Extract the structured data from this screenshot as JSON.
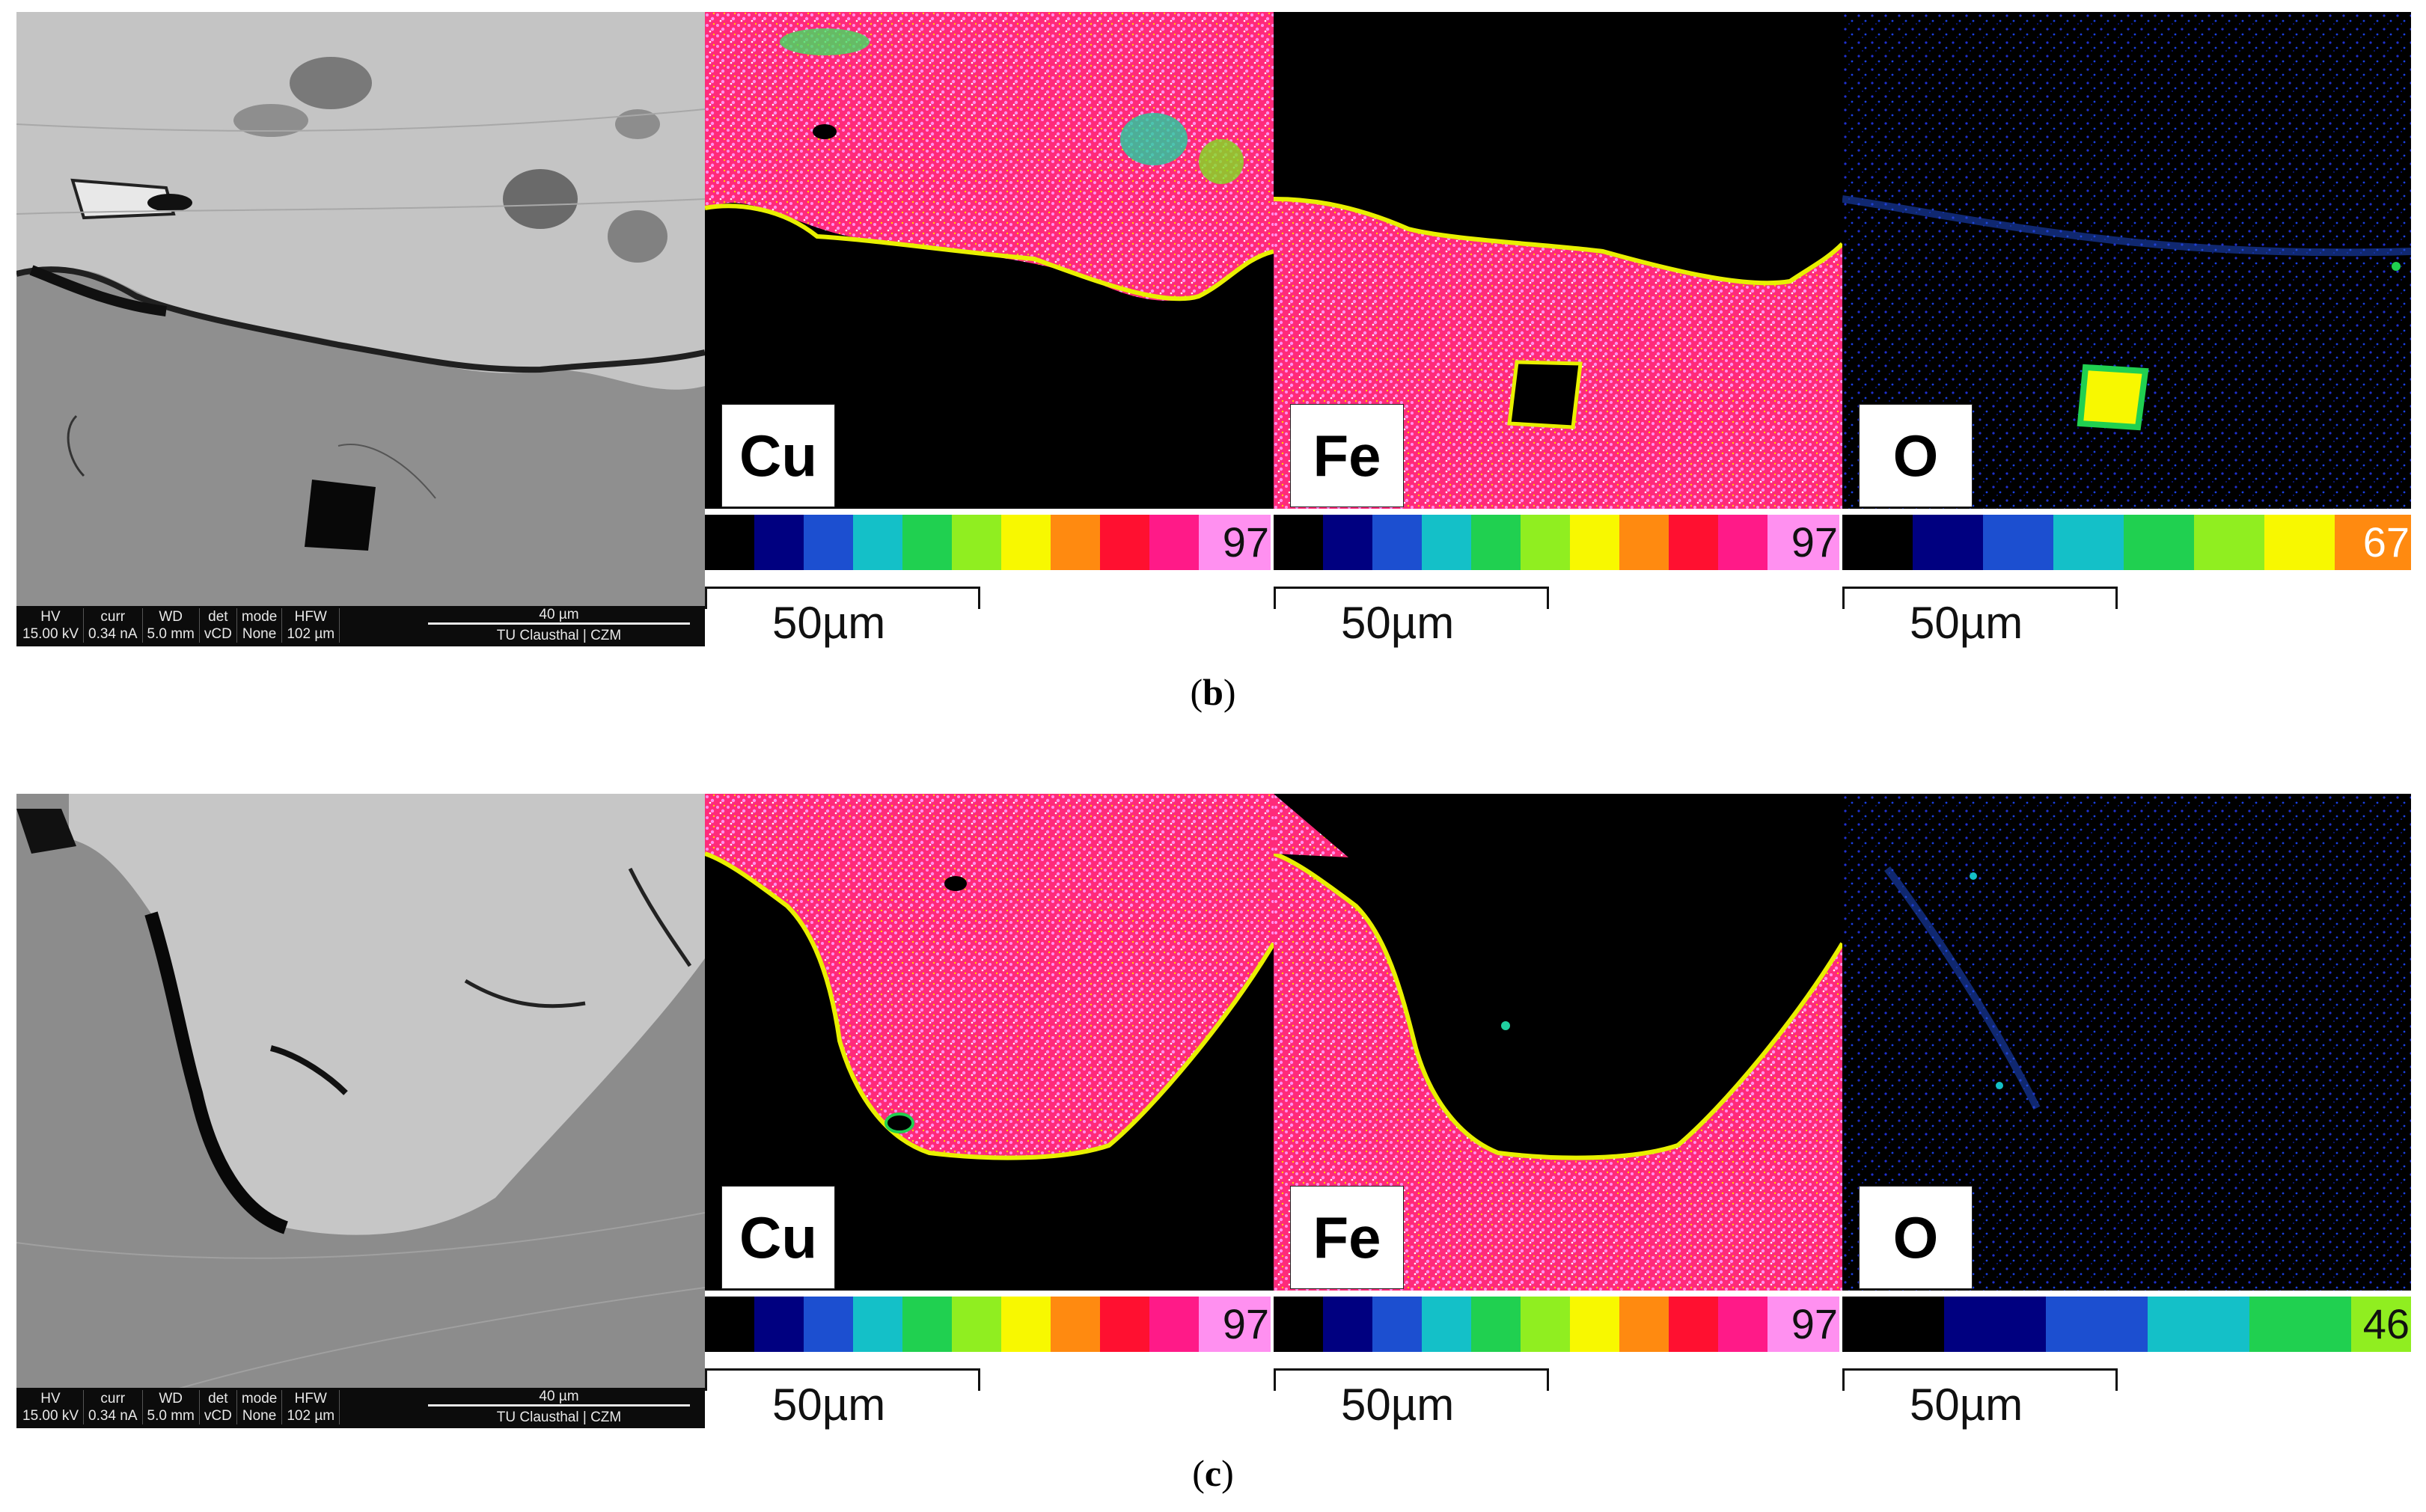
{
  "panels": [
    {
      "id": "b",
      "caption_open": "(",
      "caption_letter": "b",
      "caption_close": ")",
      "sem_databar": {
        "headers": [
          "HV",
          "curr",
          "WD",
          "det",
          "mode",
          "HFW"
        ],
        "values": [
          "15.00 kV",
          "0.34 nA",
          "5.0 mm",
          "vCD",
          "None",
          "102 µm"
        ],
        "scale_label": "40 µm",
        "institution": "TU Clausthal | CZM"
      },
      "maps": [
        {
          "element": "Cu",
          "max_value": "97",
          "scale_label": "50µm"
        },
        {
          "element": "Fe",
          "max_value": "97",
          "scale_label": "50µm"
        },
        {
          "element": "O",
          "max_value": "67",
          "scale_label": "50µm"
        }
      ]
    },
    {
      "id": "c",
      "caption_open": "(",
      "caption_letter": "c",
      "caption_close": ")",
      "sem_databar": {
        "headers": [
          "HV",
          "curr",
          "WD",
          "det",
          "mode",
          "HFW"
        ],
        "values": [
          "15.00 kV",
          "0.34 nA",
          "5.0 mm",
          "vCD",
          "None",
          "102 µm"
        ],
        "scale_label": "40 µm",
        "institution": "TU Clausthal | CZM"
      },
      "maps": [
        {
          "element": "Cu",
          "max_value": "97",
          "scale_label": "50µm"
        },
        {
          "element": "Fe",
          "max_value": "97",
          "scale_label": "50µm"
        },
        {
          "element": "O",
          "max_value": "46",
          "scale_label": "50µm"
        }
      ]
    }
  ],
  "colors": {
    "map_hot": "#ff2a7a",
    "map_speckle": "#ff8ce6",
    "map_edge": "#e8f000",
    "oxygen_dot": "#2030d0",
    "colorbar_full": [
      "#000000",
      "#000080",
      "#1c4fd0",
      "#14c0c8",
      "#20d050",
      "#90ee20",
      "#f8f800",
      "#ff8a10",
      "#ff1030",
      "#ff1a88",
      "#ff90f0"
    ],
    "colorbar_o_b": [
      "#000000",
      "#000080",
      "#1c4fd0",
      "#14c0c8",
      "#20d050",
      "#90ee20",
      "#f8f800",
      "#ff8a10"
    ],
    "colorbar_o_c": [
      "#000000",
      "#000080",
      "#1c4fd0",
      "#14c0c8",
      "#20d050",
      "#90ee20"
    ]
  }
}
